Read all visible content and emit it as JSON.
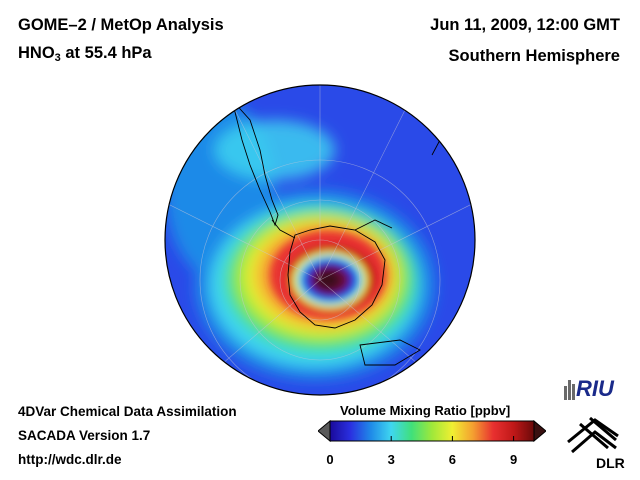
{
  "header": {
    "title_line1": "GOME–2 / MetOp Analysis",
    "species_main": "HNO",
    "species_sub": "3",
    "species_rest": " at 55.4 hPa",
    "date": "Jun 11, 2009, 12:00 GMT",
    "hemisphere": "Southern Hemisphere"
  },
  "footer": {
    "line1": "4DVar Chemical Data Assimilation",
    "line2": "SACADA Version 1.7",
    "line3": "http://wdc.dlr.de"
  },
  "colorbar": {
    "title": "Volume Mixing Ratio [ppbv]",
    "ticks": [
      "0",
      "3",
      "6",
      "9"
    ],
    "range": [
      0,
      10
    ],
    "colors": [
      "#1a0a9a",
      "#2a30e0",
      "#1f8ae8",
      "#3fd6f0",
      "#40e07a",
      "#9fe83a",
      "#f0ef32",
      "#f4a030",
      "#e83030",
      "#c01818",
      "#6a0a0a"
    ]
  },
  "logos": {
    "riu": "RIU",
    "dlr": "DLR"
  },
  "map": {
    "projection": "polar orthographic",
    "colors": {
      "background_blue": "#2a4ae8",
      "vortex_center": "#3a0a1a",
      "ring_red": "#e83030",
      "coast": "#000000"
    }
  }
}
